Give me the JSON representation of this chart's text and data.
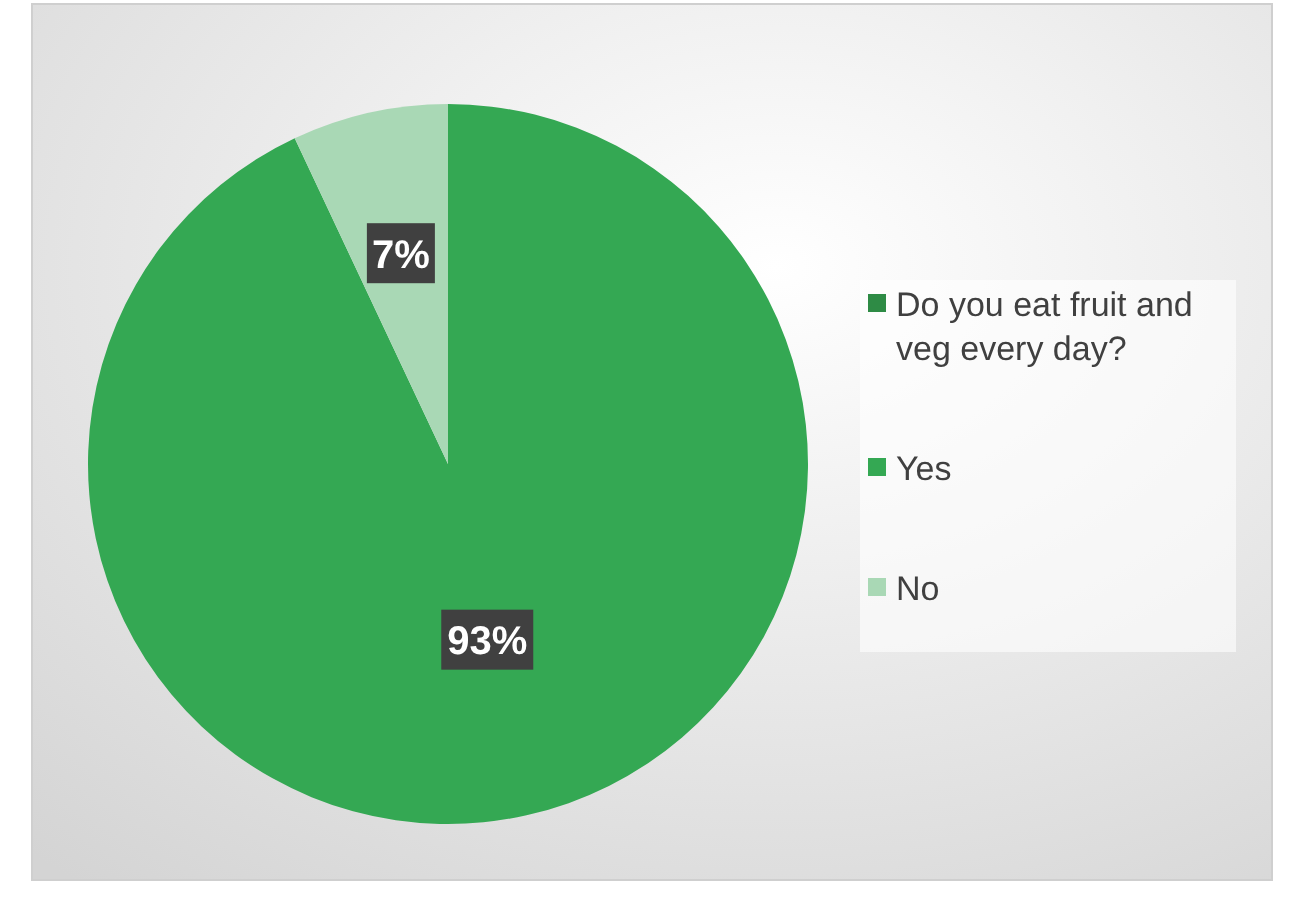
{
  "chart_data": {
    "type": "pie",
    "categories": [
      "Do you eat fruit and veg every day?",
      "Yes",
      "No"
    ],
    "values": [
      0,
      93,
      7
    ],
    "colors": [
      "#2e8b45",
      "#34a853",
      "#a9d8b5"
    ],
    "value_labels": [
      null,
      "93%",
      "7%"
    ],
    "legend": "right"
  }
}
